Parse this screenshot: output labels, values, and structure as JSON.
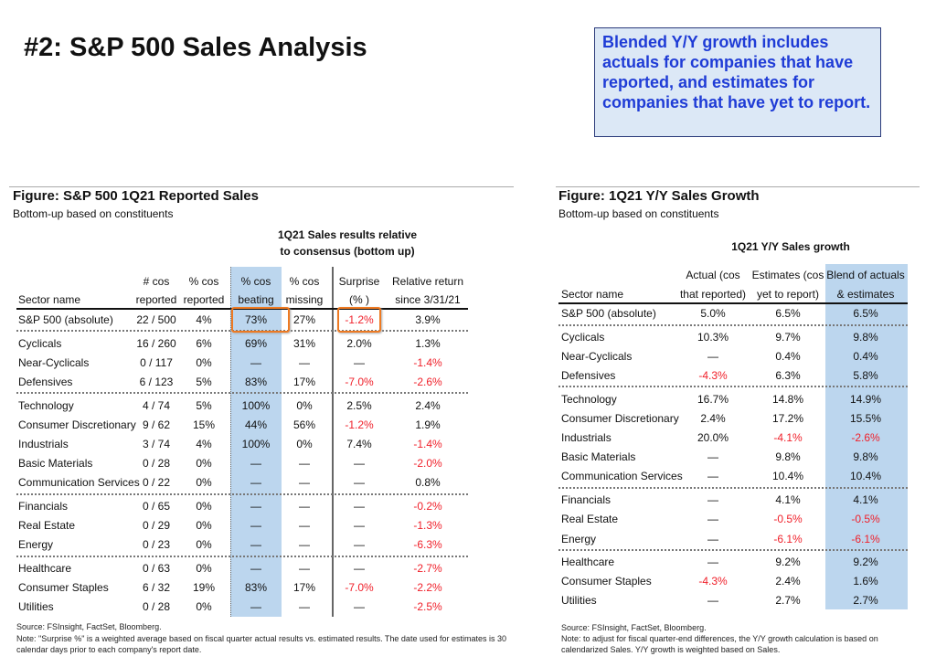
{
  "page_title": "#2: S&P 500 Sales Analysis",
  "callout": "Blended Y/Y growth includes actuals for companies that have reported, and estimates for companies that have yet to report.",
  "colors": {
    "negative": "#f0202a",
    "highlight_band": "#bcd6ee",
    "callout_text": "#1f3cd6",
    "callout_bg": "#dce8f6",
    "highlight_box": "#ee7a22"
  },
  "left": {
    "title": "Figure: S&P 500 1Q21 Reported Sales",
    "subtitle": "Bottom-up based on constituents",
    "group_header_1": "1Q21 Sales results relative",
    "group_header_2": "to consensus (bottom up)",
    "headers": [
      [
        "",
        "Sector name"
      ],
      [
        "# cos",
        "reported"
      ],
      [
        "% cos",
        "reported"
      ],
      [
        "% cos",
        "beating"
      ],
      [
        "% cos",
        "missing"
      ],
      [
        "Surprise",
        "(% )"
      ],
      [
        "Relative return",
        "since 3/31/21"
      ]
    ],
    "highlighted_cells": [
      "73%",
      "-1.2%"
    ],
    "rows": [
      [
        "S&P 500 (absolute)",
        "22 / 500",
        "4%",
        "73%",
        "27%",
        "-1.2%",
        "3.9%"
      ],
      [
        "Cyclicals",
        "16 / 260",
        "6%",
        "69%",
        "31%",
        "2.0%",
        "1.3%"
      ],
      [
        "Near-Cyclicals",
        "0 / 117",
        "0%",
        "—",
        "—",
        "—",
        "-1.4%"
      ],
      [
        "Defensives",
        "6 / 123",
        "5%",
        "83%",
        "17%",
        "-7.0%",
        "-2.6%"
      ],
      [
        "Technology",
        "4 / 74",
        "5%",
        "100%",
        "0%",
        "2.5%",
        "2.4%"
      ],
      [
        "Consumer Discretionary",
        "9 / 62",
        "15%",
        "44%",
        "56%",
        "-1.2%",
        "1.9%"
      ],
      [
        "Industrials",
        "3 / 74",
        "4%",
        "100%",
        "0%",
        "7.4%",
        "-1.4%"
      ],
      [
        "Basic Materials",
        "0 / 28",
        "0%",
        "—",
        "—",
        "—",
        "-2.0%"
      ],
      [
        "Communication Services",
        "0 / 22",
        "0%",
        "—",
        "—",
        "—",
        "0.8%"
      ],
      [
        "Financials",
        "0 / 65",
        "0%",
        "—",
        "—",
        "—",
        "-0.2%"
      ],
      [
        "Real Estate",
        "0 / 29",
        "0%",
        "—",
        "—",
        "—",
        "-1.3%"
      ],
      [
        "Energy",
        "0 / 23",
        "0%",
        "—",
        "—",
        "—",
        "-6.3%"
      ],
      [
        "Healthcare",
        "0 / 63",
        "0%",
        "—",
        "—",
        "—",
        "-2.7%"
      ],
      [
        "Consumer Staples",
        "6 / 32",
        "19%",
        "83%",
        "17%",
        "-7.0%",
        "-2.2%"
      ],
      [
        "Utilities",
        "0 / 28",
        "0%",
        "—",
        "—",
        "—",
        "-2.5%"
      ]
    ],
    "source": "Source: FSInsight, FactSet, Bloomberg.",
    "note": "Note: \"Surprise %\" is a weighted average based on fiscal quarter actual results vs. estimated results.  The date used for estimates is 30 calendar days prior to each company's report date."
  },
  "right": {
    "title": "Figure: 1Q21 Y/Y Sales Growth",
    "subtitle": "Bottom-up based on constituents",
    "group_header": "1Q21 Y/Y Sales growth",
    "headers": [
      [
        "",
        "Sector name"
      ],
      [
        "Actual (cos",
        "that reported)"
      ],
      [
        "Estimates (cos",
        "yet to report)"
      ],
      [
        "Blend of actuals",
        "& estimates"
      ]
    ],
    "rows": [
      [
        "S&P 500 (absolute)",
        "5.0%",
        "6.5%",
        "6.5%"
      ],
      [
        "Cyclicals",
        "10.3%",
        "9.7%",
        "9.8%"
      ],
      [
        "Near-Cyclicals",
        "—",
        "0.4%",
        "0.4%"
      ],
      [
        "Defensives",
        "-4.3%",
        "6.3%",
        "5.8%"
      ],
      [
        "Technology",
        "16.7%",
        "14.8%",
        "14.9%"
      ],
      [
        "Consumer Discretionary",
        "2.4%",
        "17.2%",
        "15.5%"
      ],
      [
        "Industrials",
        "20.0%",
        "-4.1%",
        "-2.6%"
      ],
      [
        "Basic Materials",
        "—",
        "9.8%",
        "9.8%"
      ],
      [
        "Communication Services",
        "—",
        "10.4%",
        "10.4%"
      ],
      [
        "Financials",
        "—",
        "4.1%",
        "4.1%"
      ],
      [
        "Real Estate",
        "—",
        "-0.5%",
        "-0.5%"
      ],
      [
        "Energy",
        "—",
        "-6.1%",
        "-6.1%"
      ],
      [
        "Healthcare",
        "—",
        "9.2%",
        "9.2%"
      ],
      [
        "Consumer Staples",
        "-4.3%",
        "2.4%",
        "1.6%"
      ],
      [
        "Utilities",
        "—",
        "2.7%",
        "2.7%"
      ]
    ],
    "source": "Source: FSInsight, FactSet, Bloomberg.",
    "note": "Note: to adjust for fiscal quarter-end differences, the Y/Y growth calculation is based on calendarized Sales. Y/Y growth is weighted based on Sales."
  }
}
